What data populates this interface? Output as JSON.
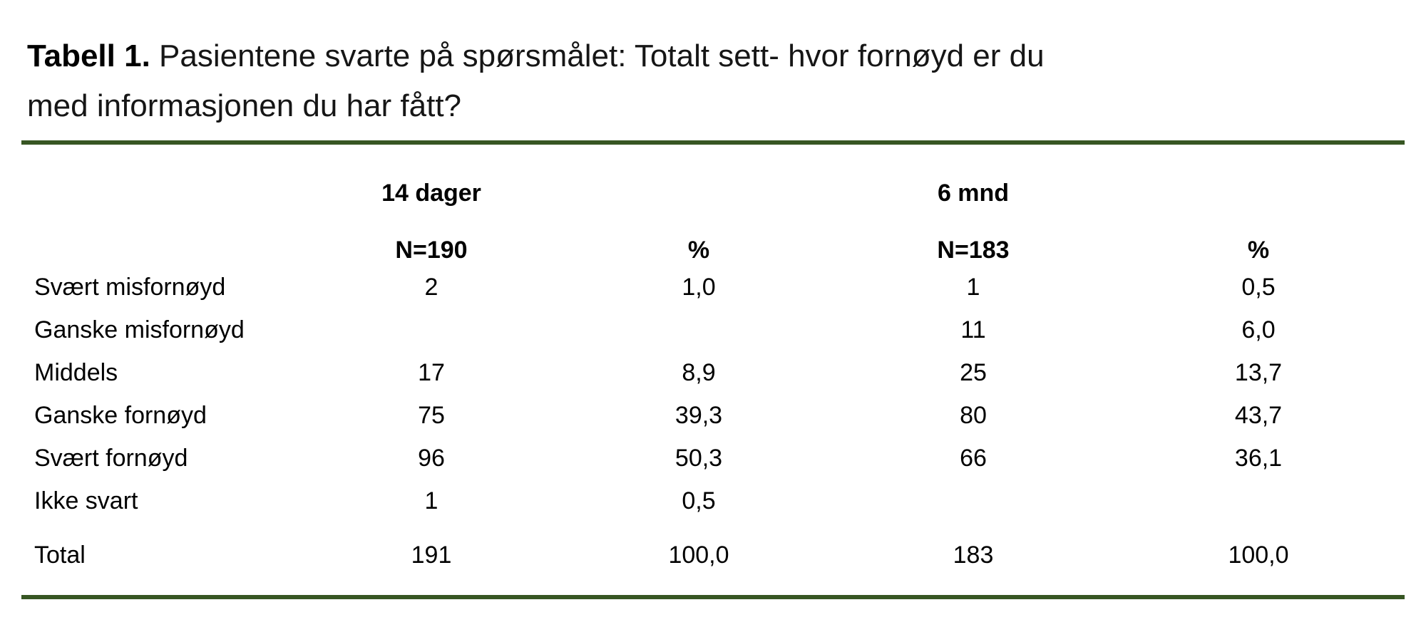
{
  "page": {
    "background_color": "#ffffff",
    "rule_color": "#375623",
    "text_color": "#000000"
  },
  "title": {
    "label": "Tabell 1.",
    "line1": "Pasientene svarte på spørsmålet: Totalt sett- hvor fornøyd er du",
    "line2": "med informasjonen du har fått?"
  },
  "table": {
    "group_headers": {
      "g1": "14 dager",
      "g2": "6 mnd"
    },
    "col_headers": {
      "n1": "N=190",
      "p1": "%",
      "n2": "N=183",
      "p2": "%"
    },
    "rows": [
      {
        "label": "Svært misfornøyd",
        "v": [
          "2",
          "1,0",
          "1",
          "0,5"
        ]
      },
      {
        "label": "Ganske misfornøyd",
        "v": [
          "",
          "",
          "11",
          "6,0"
        ]
      },
      {
        "label": "Middels",
        "v": [
          "17",
          "8,9",
          "25",
          "13,7"
        ]
      },
      {
        "label": "Ganske fornøyd",
        "v": [
          "75",
          "39,3",
          "80",
          "43,7"
        ]
      },
      {
        "label": "Svært fornøyd",
        "v": [
          "96",
          "50,3",
          "66",
          "36,1"
        ]
      },
      {
        "label": "Ikke svart",
        "v": [
          "1",
          "0,5",
          "",
          ""
        ]
      }
    ],
    "total": {
      "label": "Total",
      "v": [
        "191",
        "100,0",
        "183",
        "100,0"
      ]
    }
  }
}
